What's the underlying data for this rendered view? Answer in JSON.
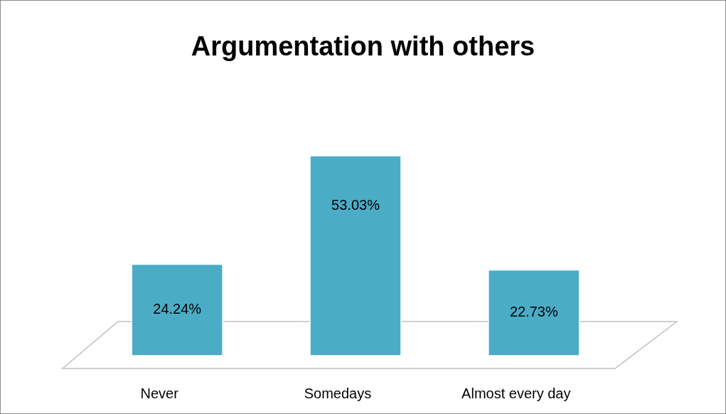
{
  "chart_data": {
    "type": "bar",
    "title": "Argumentation with others",
    "categories": [
      "Never",
      "Somedays",
      "Almost every day"
    ],
    "values": [
      24.24,
      53.03,
      22.73
    ],
    "color": "#4bacc6",
    "value_labels": [
      "24.24%",
      "53.03%",
      "22.73%"
    ]
  }
}
